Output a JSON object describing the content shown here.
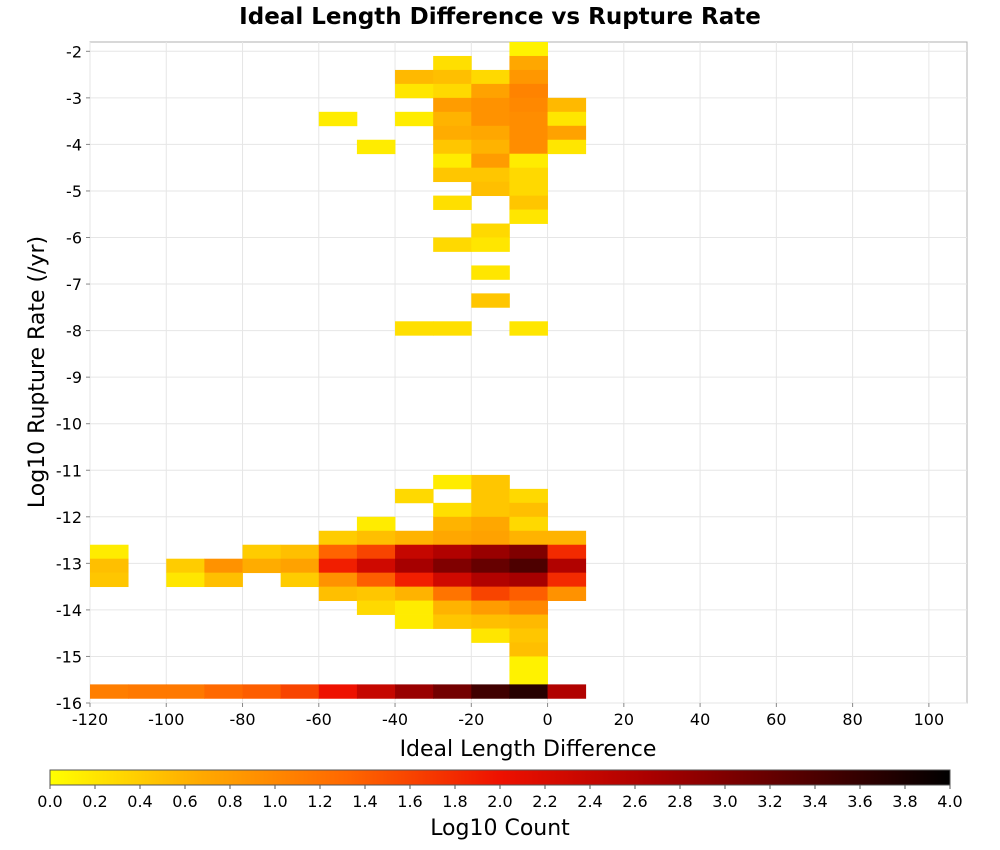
{
  "chart_data": {
    "type": "heatmap",
    "title": "Ideal Length Difference vs Rupture Rate",
    "xlabel": "Ideal Length Difference",
    "ylabel": "Log10 Rupture Rate (/yr)",
    "xlim": [
      -120,
      110
    ],
    "ylim": [
      -16,
      -1.8
    ],
    "x_ticks": [
      "-120",
      "-100",
      "-80",
      "-60",
      "-40",
      "-20",
      "0",
      "20",
      "40",
      "60",
      "80",
      "100"
    ],
    "y_ticks": [
      "-2",
      "-3",
      "-4",
      "-5",
      "-6",
      "-7",
      "-8",
      "-9",
      "-10",
      "-11",
      "-12",
      "-13",
      "-14",
      "-15",
      "-16"
    ],
    "grid": true,
    "x_bin_width": 10,
    "y_bin_height": 0.3,
    "colorbar": {
      "label": "Log10 Count",
      "min": 0.0,
      "max": 4.0,
      "ticks": [
        "0.0",
        "0.2",
        "0.4",
        "0.6",
        "0.8",
        "1.0",
        "1.2",
        "1.4",
        "1.6",
        "1.8",
        "2.0",
        "2.2",
        "2.4",
        "2.6",
        "2.8",
        "3.0",
        "3.2",
        "3.4",
        "3.6",
        "3.8",
        "4.0"
      ],
      "colors": [
        "#ffff00",
        "#ffaa00",
        "#ff6600",
        "#ee1100",
        "#aa0000",
        "#550000",
        "#000000"
      ]
    },
    "cells": [
      [
        -10,
        -2.1,
        0.1
      ],
      [
        -30,
        -2.4,
        0.25
      ],
      [
        -10,
        -2.4,
        0.7
      ],
      [
        -40,
        -2.7,
        0.55
      ],
      [
        -30,
        -2.7,
        0.5
      ],
      [
        -20,
        -2.7,
        0.3
      ],
      [
        -10,
        -2.7,
        0.85
      ],
      [
        -40,
        -3.0,
        0.2
      ],
      [
        -30,
        -3.0,
        0.3
      ],
      [
        -20,
        -3.0,
        0.75
      ],
      [
        -10,
        -3.0,
        1.05
      ],
      [
        -30,
        -3.3,
        0.8
      ],
      [
        -20,
        -3.3,
        0.9
      ],
      [
        -10,
        -3.3,
        1.0
      ],
      [
        0,
        -3.3,
        0.55
      ],
      [
        -60,
        -3.6,
        0.15
      ],
      [
        -40,
        -3.6,
        0.15
      ],
      [
        -30,
        -3.6,
        0.6
      ],
      [
        -20,
        -3.6,
        0.9
      ],
      [
        -10,
        -3.6,
        0.95
      ],
      [
        0,
        -3.6,
        0.2
      ],
      [
        -30,
        -3.9,
        0.65
      ],
      [
        -20,
        -3.9,
        0.7
      ],
      [
        -10,
        -3.9,
        0.95
      ],
      [
        0,
        -3.9,
        0.75
      ],
      [
        -50,
        -4.2,
        0.15
      ],
      [
        -30,
        -4.2,
        0.45
      ],
      [
        -20,
        -4.2,
        0.6
      ],
      [
        -10,
        -4.2,
        0.95
      ],
      [
        0,
        -4.2,
        0.2
      ],
      [
        -30,
        -4.5,
        0.15
      ],
      [
        -20,
        -4.5,
        0.8
      ],
      [
        -10,
        -4.5,
        0.15
      ],
      [
        -30,
        -4.8,
        0.45
      ],
      [
        -20,
        -4.8,
        0.45
      ],
      [
        -10,
        -4.8,
        0.3
      ],
      [
        -20,
        -5.1,
        0.5
      ],
      [
        -10,
        -5.1,
        0.3
      ],
      [
        -30,
        -5.4,
        0.25
      ],
      [
        -10,
        -5.4,
        0.45
      ],
      [
        -10,
        -5.7,
        0.2
      ],
      [
        -20,
        -6.0,
        0.3
      ],
      [
        -30,
        -6.3,
        0.3
      ],
      [
        -20,
        -6.3,
        0.2
      ],
      [
        -20,
        -6.9,
        0.2
      ],
      [
        -20,
        -7.5,
        0.45
      ],
      [
        -40,
        -8.1,
        0.25
      ],
      [
        -30,
        -8.1,
        0.25
      ],
      [
        -10,
        -8.1,
        0.2
      ],
      [
        -30,
        -11.4,
        0.15
      ],
      [
        -20,
        -11.4,
        0.45
      ],
      [
        -40,
        -11.7,
        0.3
      ],
      [
        -20,
        -11.7,
        0.45
      ],
      [
        -10,
        -11.7,
        0.3
      ],
      [
        -30,
        -12.0,
        0.25
      ],
      [
        -20,
        -12.0,
        0.45
      ],
      [
        -10,
        -12.0,
        0.5
      ],
      [
        -50,
        -12.3,
        0.15
      ],
      [
        -30,
        -12.3,
        0.6
      ],
      [
        -20,
        -12.3,
        0.7
      ],
      [
        -10,
        -12.3,
        0.3
      ],
      [
        -60,
        -12.6,
        0.4
      ],
      [
        -50,
        -12.6,
        0.5
      ],
      [
        -40,
        -12.6,
        0.6
      ],
      [
        -30,
        -12.6,
        0.7
      ],
      [
        -20,
        -12.6,
        0.75
      ],
      [
        -10,
        -12.6,
        0.6
      ],
      [
        0,
        -12.6,
        0.6
      ],
      [
        -120,
        -12.9,
        0.15
      ],
      [
        -80,
        -12.9,
        0.4
      ],
      [
        -70,
        -12.9,
        0.5
      ],
      [
        -60,
        -12.9,
        1.35
      ],
      [
        -50,
        -12.9,
        1.6
      ],
      [
        -40,
        -12.9,
        2.4
      ],
      [
        -30,
        -12.9,
        2.6
      ],
      [
        -20,
        -12.9,
        2.8
      ],
      [
        -10,
        -12.9,
        3.0
      ],
      [
        0,
        -12.9,
        1.8
      ],
      [
        -120,
        -13.2,
        0.5
      ],
      [
        -100,
        -13.2,
        0.4
      ],
      [
        -90,
        -13.2,
        0.9
      ],
      [
        -80,
        -13.2,
        0.65
      ],
      [
        -70,
        -13.2,
        0.75
      ],
      [
        -60,
        -13.2,
        1.9
      ],
      [
        -50,
        -13.2,
        2.3
      ],
      [
        -40,
        -13.2,
        2.7
      ],
      [
        -30,
        -13.2,
        3.0
      ],
      [
        -20,
        -13.2,
        3.2
      ],
      [
        -10,
        -13.2,
        3.4
      ],
      [
        0,
        -13.2,
        2.6
      ],
      [
        -120,
        -13.5,
        0.45
      ],
      [
        -100,
        -13.5,
        0.2
      ],
      [
        -90,
        -13.5,
        0.5
      ],
      [
        -70,
        -13.5,
        0.4
      ],
      [
        -60,
        -13.5,
        0.9
      ],
      [
        -50,
        -13.5,
        1.4
      ],
      [
        -40,
        -13.5,
        1.9
      ],
      [
        -30,
        -13.5,
        2.3
      ],
      [
        -20,
        -13.5,
        2.6
      ],
      [
        -10,
        -13.5,
        2.7
      ],
      [
        0,
        -13.5,
        1.8
      ],
      [
        -60,
        -13.8,
        0.5
      ],
      [
        -50,
        -13.8,
        0.45
      ],
      [
        -40,
        -13.8,
        0.6
      ],
      [
        -30,
        -13.8,
        1.2
      ],
      [
        -20,
        -13.8,
        1.6
      ],
      [
        -10,
        -13.8,
        1.4
      ],
      [
        0,
        -13.8,
        0.9
      ],
      [
        -50,
        -14.1,
        0.3
      ],
      [
        -40,
        -14.1,
        0.15
      ],
      [
        -30,
        -14.1,
        0.6
      ],
      [
        -20,
        -14.1,
        0.8
      ],
      [
        -10,
        -14.1,
        1.0
      ],
      [
        -40,
        -14.4,
        0.15
      ],
      [
        -30,
        -14.4,
        0.45
      ],
      [
        -20,
        -14.4,
        0.5
      ],
      [
        -10,
        -14.4,
        0.55
      ],
      [
        -20,
        -14.7,
        0.2
      ],
      [
        -10,
        -14.7,
        0.45
      ],
      [
        -10,
        -15.0,
        0.5
      ],
      [
        -10,
        -15.3,
        0.1
      ],
      [
        -10,
        -15.6,
        0.1
      ],
      [
        -120,
        -15.9,
        1.1
      ],
      [
        -110,
        -15.9,
        1.15
      ],
      [
        -100,
        -15.9,
        1.15
      ],
      [
        -90,
        -15.9,
        1.3
      ],
      [
        -80,
        -15.9,
        1.4
      ],
      [
        -70,
        -15.9,
        1.6
      ],
      [
        -60,
        -15.9,
        2.0
      ],
      [
        -50,
        -15.9,
        2.4
      ],
      [
        -40,
        -15.9,
        2.8
      ],
      [
        -30,
        -15.9,
        3.1
      ],
      [
        -20,
        -15.9,
        3.5
      ],
      [
        -10,
        -15.9,
        3.7
      ],
      [
        0,
        -15.9,
        2.6
      ]
    ]
  }
}
